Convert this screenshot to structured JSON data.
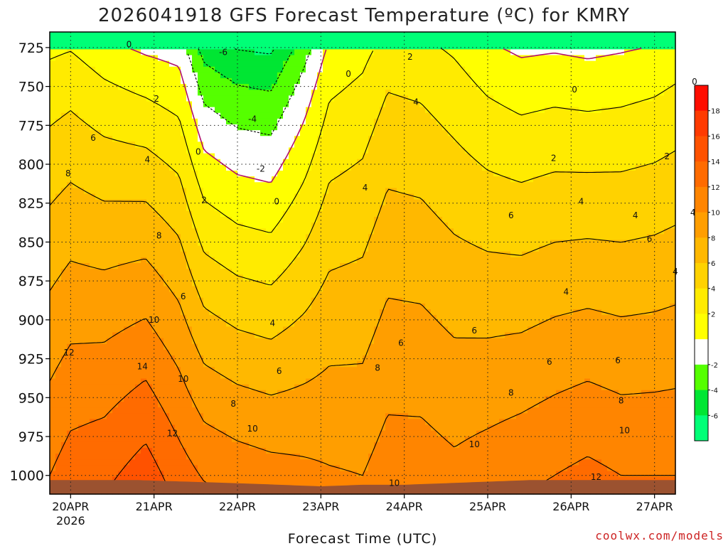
{
  "chart_data": {
    "type": "heatmap",
    "title": "2026041918 GFS Forecast Temperature (ºC) for KMRY",
    "xlabel": "Forecast Time (UTC)",
    "ylabel": "",
    "x_ticks": [
      {
        "label": "20APR",
        "sublabel": "2026",
        "day": 0
      },
      {
        "label": "21APR",
        "day": 1
      },
      {
        "label": "22APR",
        "day": 2
      },
      {
        "label": "23APR",
        "day": 3
      },
      {
        "label": "24APR",
        "day": 4
      },
      {
        "label": "25APR",
        "day": 5
      },
      {
        "label": "26APR",
        "day": 6
      },
      {
        "label": "27APR",
        "day": 7
      }
    ],
    "xlim": [
      -0.25,
      7.25
    ],
    "y_ticks": [
      725,
      750,
      775,
      800,
      825,
      850,
      875,
      900,
      925,
      950,
      975,
      1000
    ],
    "ylim": [
      1012,
      715
    ],
    "pressure_unit": "hPa",
    "colorbar": {
      "ticks": [
        18,
        16,
        14,
        12,
        10,
        8,
        6,
        4,
        2,
        -2,
        -4,
        -6
      ],
      "bins": [
        {
          "lo": 18,
          "hi": 20,
          "color": "#ff0d00"
        },
        {
          "lo": 16,
          "hi": 18,
          "color": "#ff3a00"
        },
        {
          "lo": 14,
          "hi": 16,
          "color": "#ff5200"
        },
        {
          "lo": 12,
          "hi": 14,
          "color": "#ff6b00"
        },
        {
          "lo": 10,
          "hi": 12,
          "color": "#ff8500"
        },
        {
          "lo": 8,
          "hi": 10,
          "color": "#ff9e00"
        },
        {
          "lo": 6,
          "hi": 8,
          "color": "#ffb800"
        },
        {
          "lo": 4,
          "hi": 6,
          "color": "#ffd200"
        },
        {
          "lo": 2,
          "hi": 4,
          "color": "#ffeb00"
        },
        {
          "lo": 0,
          "hi": 2,
          "color": "#ffff00"
        },
        {
          "lo": -2,
          "hi": 0,
          "color": "#ffffff"
        },
        {
          "lo": -4,
          "hi": -2,
          "color": "#55ff00"
        },
        {
          "lo": -6,
          "hi": -4,
          "color": "#00e633"
        },
        {
          "lo": -8,
          "hi": -6,
          "color": "#00ff77"
        }
      ]
    },
    "temperature_profiles": [
      {
        "day": -0.25,
        "t725": 1.5,
        "t1000": 12.0
      },
      {
        "day": 0.0,
        "t725": 1.8,
        "t1000": 13.0
      },
      {
        "day": 0.4,
        "t725": 0.6,
        "t1000": 13.5
      },
      {
        "day": 0.9,
        "t725": -0.5,
        "t1000": 15.0
      },
      {
        "day": 1.3,
        "t725": -1.0,
        "t1000": 13.0
      },
      {
        "day": 1.6,
        "t725": -5.0,
        "t1000": 11.8
      },
      {
        "day": 2.0,
        "t725": -6.2,
        "t1000": 11.2
      },
      {
        "day": 2.4,
        "t725": -6.5,
        "t1000": 10.8
      },
      {
        "day": 2.8,
        "t725": -3.0,
        "t1000": 10.5
      },
      {
        "day": 3.1,
        "t725": 0.3,
        "t1000": 10.2
      },
      {
        "day": 3.5,
        "t725": 1.2,
        "t1000": 10.0
      },
      {
        "day": 3.8,
        "t725": 2.8,
        "t1000": 11.0
      },
      {
        "day": 4.2,
        "t725": 2.5,
        "t1000": 11.0
      },
      {
        "day": 4.6,
        "t725": 1.6,
        "t1000": 10.5
      },
      {
        "day": 5.0,
        "t725": 0.3,
        "t1000": 11.0
      },
      {
        "day": 5.4,
        "t725": -0.5,
        "t1000": 11.5
      },
      {
        "day": 5.8,
        "t725": -0.3,
        "t1000": 12.0
      },
      {
        "day": 6.2,
        "t725": -0.6,
        "t1000": 12.5
      },
      {
        "day": 6.6,
        "t725": -0.3,
        "t1000": 12.0
      },
      {
        "day": 7.0,
        "t725": 0.1,
        "t1000": 12.0
      },
      {
        "day": 7.25,
        "t725": 0.6,
        "t1000": 12.0
      }
    ],
    "surface_pressure": [
      {
        "day": -0.25,
        "p": 1003
      },
      {
        "day": 0.2,
        "p": 1003
      },
      {
        "day": 0.8,
        "p": 1003
      },
      {
        "day": 1.4,
        "p": 1004
      },
      {
        "day": 2.0,
        "p": 1005
      },
      {
        "day": 2.5,
        "p": 1006
      },
      {
        "day": 3.0,
        "p": 1007
      },
      {
        "day": 3.5,
        "p": 1006
      },
      {
        "day": 4.0,
        "p": 1006
      },
      {
        "day": 4.5,
        "p": 1005
      },
      {
        "day": 5.0,
        "p": 1004
      },
      {
        "day": 5.5,
        "p": 1003
      },
      {
        "day": 6.0,
        "p": 1003
      },
      {
        "day": 6.5,
        "p": 1003
      },
      {
        "day": 7.25,
        "p": 1003
      }
    ],
    "contour_labels": [
      {
        "text": "0",
        "day": 0.7,
        "p": 723
      },
      {
        "text": "-6",
        "day": 1.83,
        "p": 728
      },
      {
        "text": "2",
        "day": 4.07,
        "p": 731
      },
      {
        "text": "0",
        "day": 3.33,
        "p": 742
      },
      {
        "text": "0",
        "day": 7.48,
        "p": 747
      },
      {
        "text": "0",
        "day": 6.04,
        "p": 752
      },
      {
        "text": "2",
        "day": 1.03,
        "p": 758
      },
      {
        "text": "4",
        "day": 4.14,
        "p": 760
      },
      {
        "text": "-4",
        "day": 2.18,
        "p": 771
      },
      {
        "text": "6",
        "day": 0.27,
        "p": 783
      },
      {
        "text": "0",
        "day": 1.53,
        "p": 792
      },
      {
        "text": "2",
        "day": 5.79,
        "p": 796
      },
      {
        "text": "2",
        "day": 7.15,
        "p": 795
      },
      {
        "text": "4",
        "day": 0.92,
        "p": 797
      },
      {
        "text": "-2",
        "day": 2.28,
        "p": 803
      },
      {
        "text": "8",
        "day": -0.03,
        "p": 806
      },
      {
        "text": "4",
        "day": 3.53,
        "p": 815
      },
      {
        "text": "2",
        "day": 1.6,
        "p": 823
      },
      {
        "text": "0",
        "day": 2.47,
        "p": 824
      },
      {
        "text": "4",
        "day": 6.12,
        "p": 824
      },
      {
        "text": "6",
        "day": 5.28,
        "p": 833
      },
      {
        "text": "4",
        "day": 7.46,
        "p": 831
      },
      {
        "text": "4",
        "day": 6.77,
        "p": 833
      },
      {
        "text": "8",
        "day": 1.06,
        "p": 846
      },
      {
        "text": "6",
        "day": 6.94,
        "p": 848
      },
      {
        "text": "4",
        "day": 7.25,
        "p": 869
      },
      {
        "text": "4",
        "day": 5.94,
        "p": 882
      },
      {
        "text": "6",
        "day": 1.35,
        "p": 885
      },
      {
        "text": "10",
        "day": 1.0,
        "p": 900
      },
      {
        "text": "4",
        "day": 2.42,
        "p": 902
      },
      {
        "text": "6",
        "day": 4.84,
        "p": 907
      },
      {
        "text": "6",
        "day": 3.96,
        "p": 915
      },
      {
        "text": "12",
        "day": -0.02,
        "p": 921
      },
      {
        "text": "6",
        "day": 5.74,
        "p": 927
      },
      {
        "text": "6",
        "day": 6.56,
        "p": 926
      },
      {
        "text": "14",
        "day": 0.86,
        "p": 930
      },
      {
        "text": "8",
        "day": 3.68,
        "p": 931
      },
      {
        "text": "6",
        "day": 2.5,
        "p": 933
      },
      {
        "text": "10",
        "day": 1.35,
        "p": 938
      },
      {
        "text": "8",
        "day": 5.28,
        "p": 947
      },
      {
        "text": "8",
        "day": 6.6,
        "p": 952
      },
      {
        "text": "8",
        "day": 1.95,
        "p": 954
      },
      {
        "text": "10",
        "day": 6.64,
        "p": 971
      },
      {
        "text": "10",
        "day": 2.18,
        "p": 970
      },
      {
        "text": "12",
        "day": 1.22,
        "p": 973
      },
      {
        "text": "10",
        "day": 4.84,
        "p": 980
      },
      {
        "text": "12",
        "day": 6.3,
        "p": 1001
      },
      {
        "text": "10",
        "day": 3.88,
        "p": 1005
      }
    ]
  },
  "credit": "coolwx.com/models",
  "colors": {
    "ground": "#9b5230",
    "grid": "#222222",
    "contour": "#000000",
    "freezing_line": "#b0106c",
    "credit": "#cc2222"
  }
}
